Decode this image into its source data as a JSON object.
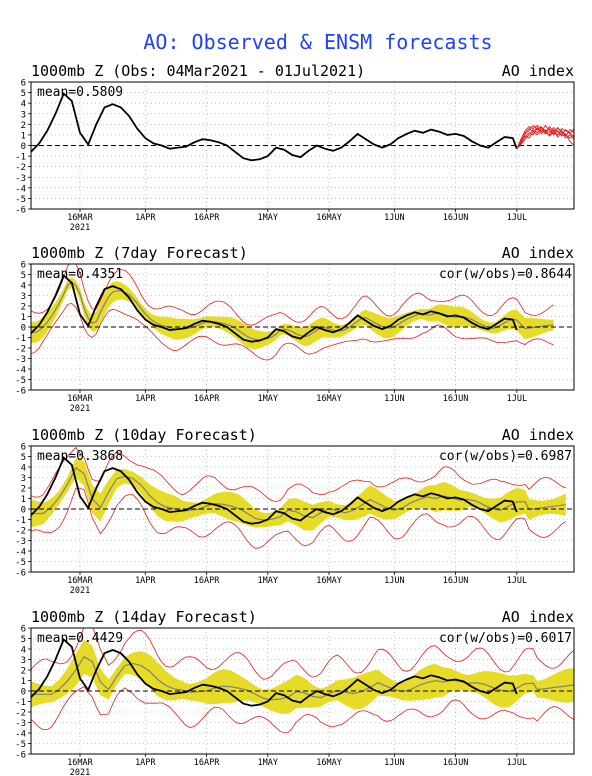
{
  "title": "AO: Observed & ENSM forecasts",
  "colors": {
    "title": "#2040ff",
    "obs": "#000000",
    "mean": "#808080",
    "band": "#e6dc28",
    "spread": "#e02020",
    "grid": "#999999"
  },
  "chart_data": [
    {
      "type": "line",
      "title": "1000mb Z (Obs: 04Mar2021 - 01Jul2021)",
      "right_label": "AO index",
      "stat_label": "mean=0.5809",
      "ylim": [
        -6,
        6
      ],
      "yticks": [
        6,
        5,
        4,
        3,
        2,
        1,
        0,
        -1,
        -2,
        -3,
        -4,
        -5,
        -6
      ],
      "xlim": [
        0,
        133
      ],
      "xticks": [
        {
          "label": "16MAR",
          "day": 12
        },
        {
          "label": "1APR",
          "day": 28
        },
        {
          "label": "16APR",
          "day": 43
        },
        {
          "label": "1MAY",
          "day": 58
        },
        {
          "label": "16MAY",
          "day": 73
        },
        {
          "label": "1JUN",
          "day": 89
        },
        {
          "label": "16JUN",
          "day": 104
        },
        {
          "label": "1JUL",
          "day": 119
        }
      ],
      "year_label": "2021",
      "obs": {
        "x": [
          0,
          2,
          4,
          6,
          8,
          10,
          12,
          14,
          16,
          18,
          20,
          22,
          24,
          26,
          28,
          30,
          32,
          34,
          36,
          38,
          40,
          42,
          44,
          46,
          48,
          50,
          52,
          54,
          56,
          58,
          60,
          62,
          64,
          66,
          68,
          70,
          72,
          74,
          76,
          78,
          80,
          82,
          84,
          86,
          88,
          90,
          92,
          94,
          96,
          98,
          100,
          102,
          104,
          106,
          108,
          110,
          112,
          114,
          116,
          118,
          119
        ],
        "y": [
          -0.6,
          0.2,
          1.4,
          3.0,
          4.9,
          4.2,
          1.2,
          0.1,
          2.0,
          3.6,
          3.9,
          3.6,
          2.8,
          1.6,
          0.7,
          0.2,
          0.0,
          -0.3,
          -0.2,
          -0.1,
          0.3,
          0.6,
          0.5,
          0.3,
          0.0,
          -0.6,
          -1.2,
          -1.4,
          -1.3,
          -1.0,
          -0.2,
          -0.4,
          -0.9,
          -1.1,
          -0.5,
          0.0,
          -0.3,
          -0.5,
          -0.2,
          0.4,
          1.1,
          0.6,
          0.1,
          -0.2,
          0.1,
          0.7,
          1.1,
          1.4,
          1.2,
          1.5,
          1.3,
          1.0,
          1.1,
          0.9,
          0.4,
          0.0,
          -0.2,
          0.3,
          0.8,
          0.7,
          -0.3
        ]
      },
      "forecasts": {
        "start": 119,
        "end": 133,
        "members": [
          [
            -0.3,
            0.6,
            1.4,
            1.8,
            1.6,
            1.9,
            1.5,
            1.3,
            1.6,
            1.0,
            1.4,
            0.9,
            1.1,
            0.4,
            0.0
          ],
          [
            -0.3,
            0.4,
            1.1,
            1.4,
            1.9,
            1.5,
            1.8,
            1.2,
            1.0,
            1.5,
            0.8,
            1.3,
            0.7,
            1.0,
            0.6
          ],
          [
            -0.3,
            0.2,
            0.8,
            1.2,
            1.0,
            1.6,
            1.3,
            1.9,
            1.4,
            1.1,
            1.7,
            1.2,
            0.9,
            1.5,
            1.2
          ],
          [
            -0.3,
            0.5,
            0.9,
            0.7,
            1.3,
            1.0,
            1.5,
            1.1,
            1.8,
            1.3,
            1.0,
            1.6,
            1.4,
            1.1,
            1.6
          ],
          [
            -0.3,
            0.3,
            1.2,
            1.6,
            1.3,
            1.7,
            1.1,
            1.5,
            1.2,
            1.7,
            1.3,
            1.0,
            1.5,
            1.2,
            0.8
          ],
          [
            -0.3,
            0.1,
            0.6,
            1.0,
            1.5,
            1.2,
            1.7,
            1.4,
            0.9,
            1.3,
            1.6,
            1.4,
            1.0,
            0.7,
            1.0
          ]
        ]
      }
    },
    {
      "type": "line",
      "title": "1000mb Z (7day Forecast)",
      "right_label": "AO index",
      "stat_label": "mean=0.4351",
      "cor_label": "cor(w/obs)=0.8644",
      "ylim": [
        -6,
        6
      ],
      "yticks": [
        6,
        5,
        4,
        3,
        2,
        1,
        0,
        -1,
        -2,
        -3,
        -4,
        -5,
        -6
      ],
      "xlim": [
        0,
        133
      ],
      "xticks": [
        {
          "label": "16MAR",
          "day": 12
        },
        {
          "label": "1APR",
          "day": 28
        },
        {
          "label": "16APR",
          "day": 43
        },
        {
          "label": "1MAY",
          "day": 58
        },
        {
          "label": "16MAY",
          "day": 73
        },
        {
          "label": "1JUN",
          "day": 89
        },
        {
          "label": "16JUN",
          "day": 104
        },
        {
          "label": "1JUL",
          "day": 119
        }
      ],
      "year_label": "2021",
      "lag": 1.5,
      "spread": 0.75,
      "outer": 1.6,
      "end": 128
    },
    {
      "type": "line",
      "title": "1000mb Z (10day Forecast)",
      "right_label": "AO index",
      "stat_label": "mean=0.3868",
      "cor_label": "cor(w/obs)=0.6987",
      "ylim": [
        -6,
        6
      ],
      "yticks": [
        6,
        5,
        4,
        3,
        2,
        1,
        0,
        -1,
        -2,
        -3,
        -4,
        -5,
        -6
      ],
      "xlim": [
        0,
        133
      ],
      "xticks": [
        {
          "label": "16MAR",
          "day": 12
        },
        {
          "label": "1APR",
          "day": 28
        },
        {
          "label": "16APR",
          "day": 43
        },
        {
          "label": "1MAY",
          "day": 58
        },
        {
          "label": "16MAY",
          "day": 73
        },
        {
          "label": "1JUN",
          "day": 89
        },
        {
          "label": "16JUN",
          "day": 104
        },
        {
          "label": "1JUL",
          "day": 119
        }
      ],
      "year_label": "2021",
      "lag": 3,
      "spread": 1.0,
      "outer": 2.2,
      "end": 131
    },
    {
      "type": "line",
      "title": "1000mb Z (14day Forecast)",
      "right_label": "AO index",
      "stat_label": "mean=0.4429",
      "cor_label": "cor(w/obs)=0.6017",
      "ylim": [
        -6,
        6
      ],
      "yticks": [
        6,
        5,
        4,
        3,
        2,
        1,
        0,
        -1,
        -2,
        -3,
        -4,
        -5,
        -6
      ],
      "xlim": [
        0,
        133
      ],
      "xticks": [
        {
          "label": "16MAR",
          "day": 12
        },
        {
          "label": "1APR",
          "day": 28
        },
        {
          "label": "16APR",
          "day": 43
        },
        {
          "label": "1MAY",
          "day": 58
        },
        {
          "label": "16MAY",
          "day": 73
        },
        {
          "label": "1JUN",
          "day": 89
        },
        {
          "label": "16JUN",
          "day": 104
        },
        {
          "label": "1JUL",
          "day": 119
        }
      ],
      "year_label": "2021",
      "lag": 5,
      "spread": 1.2,
      "outer": 2.6,
      "end": 133
    }
  ]
}
